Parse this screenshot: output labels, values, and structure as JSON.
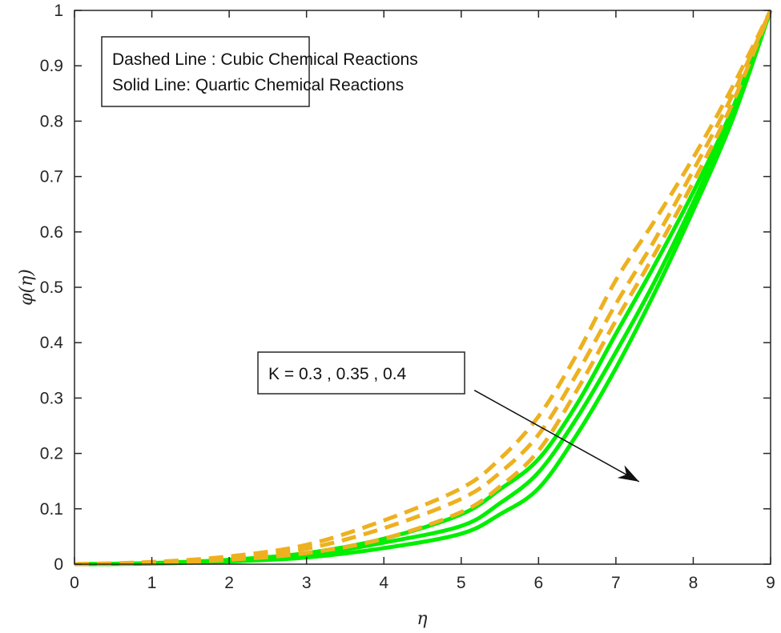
{
  "chart_data": {
    "type": "line",
    "title": "",
    "xlabel": "η",
    "ylabel": "φ(η)",
    "xlim": [
      0,
      9
    ],
    "ylim": [
      0,
      1
    ],
    "xticks": [
      "0",
      "1",
      "2",
      "3",
      "4",
      "5",
      "6",
      "7",
      "8",
      "9"
    ],
    "yticks": [
      "0",
      "0.1",
      "0.2",
      "0.3",
      "0.4",
      "0.5",
      "0.6",
      "0.7",
      "0.8",
      "0.9",
      "1"
    ],
    "grid": false,
    "x": [
      0,
      1,
      2,
      3,
      4,
      5,
      5.5,
      6,
      6.5,
      7,
      7.5,
      8,
      8.5,
      9
    ],
    "series": [
      {
        "name": "Cubic K=0.3",
        "style": "dashed",
        "color": "#EDB120",
        "values": [
          0,
          0.004,
          0.014,
          0.035,
          0.079,
          0.137,
          0.19,
          0.267,
          0.38,
          0.513,
          0.62,
          0.734,
          0.86,
          1
        ]
      },
      {
        "name": "Cubic K=0.35",
        "style": "dashed",
        "color": "#EDB120",
        "values": [
          0,
          0.003,
          0.011,
          0.028,
          0.065,
          0.118,
          0.165,
          0.234,
          0.345,
          0.47,
          0.585,
          0.711,
          0.845,
          1
        ]
      },
      {
        "name": "Cubic K=0.4",
        "style": "dashed",
        "color": "#EDB120",
        "values": [
          0,
          0.002,
          0.008,
          0.02,
          0.046,
          0.094,
          0.14,
          0.205,
          0.315,
          0.44,
          0.56,
          0.69,
          0.83,
          1
        ]
      },
      {
        "name": "Quartic K=0.3",
        "style": "solid",
        "color": "#00EE00",
        "values": [
          0,
          0.002,
          0.008,
          0.02,
          0.046,
          0.09,
          0.135,
          0.19,
          0.29,
          0.416,
          0.54,
          0.672,
          0.82,
          1
        ]
      },
      {
        "name": "Quartic K=0.35",
        "style": "solid",
        "color": "#00EE00",
        "values": [
          0,
          0.0015,
          0.006,
          0.016,
          0.039,
          0.069,
          0.11,
          0.166,
          0.265,
          0.383,
          0.51,
          0.653,
          0.81,
          1
        ]
      },
      {
        "name": "Quartic K=0.4",
        "style": "solid",
        "color": "#00EE00",
        "values": [
          0,
          0.001,
          0.005,
          0.012,
          0.029,
          0.055,
          0.09,
          0.137,
          0.235,
          0.354,
          0.49,
          0.639,
          0.8,
          1
        ]
      }
    ],
    "legend": {
      "line1": "Dashed Line : Cubic Chemical Reactions",
      "line2": "Solid Line: Quartic Chemical Reactions",
      "placement": "top-left"
    },
    "annotation": {
      "text": "K = 0.3 , 0.35 , 0.4",
      "arrow_from": [
        5.17,
        0.314
      ],
      "arrow_to": [
        7.3,
        0.149
      ]
    }
  }
}
